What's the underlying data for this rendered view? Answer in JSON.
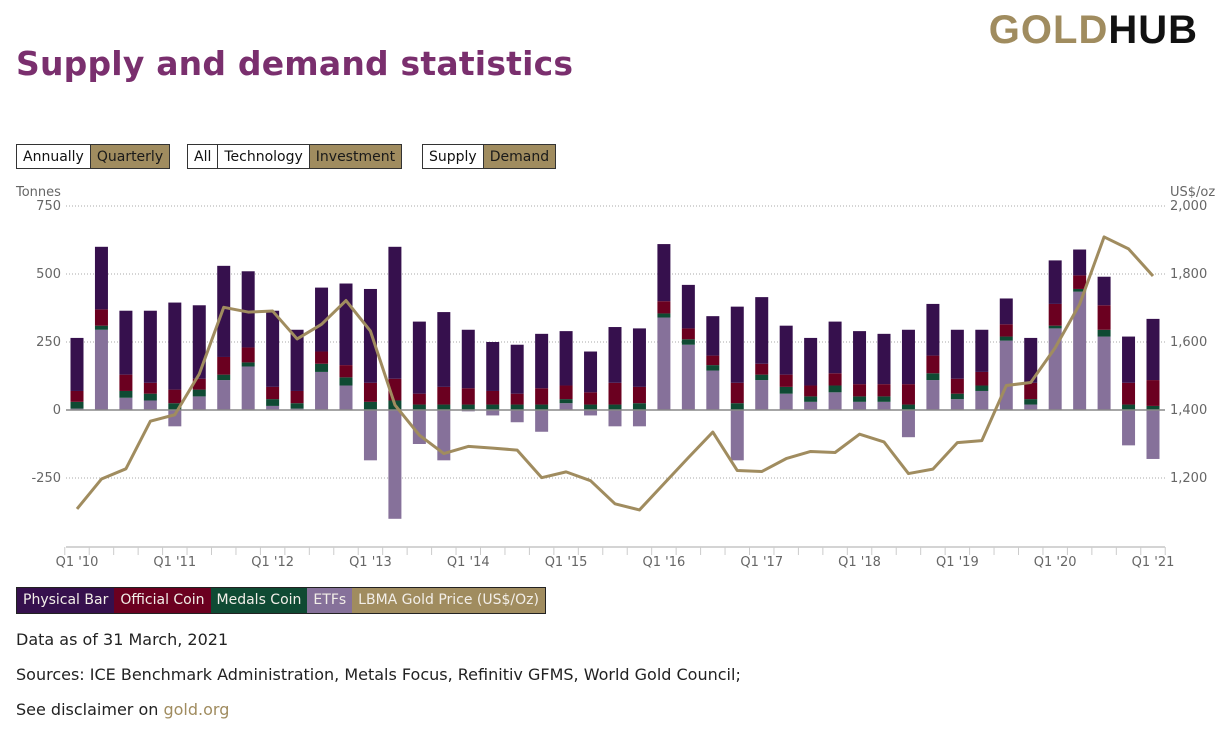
{
  "header": {
    "title": "Supply and demand statistics",
    "logo_gold": "GOLD",
    "logo_hub": "HUB"
  },
  "controls": {
    "period": [
      {
        "label": "Annually",
        "active": false
      },
      {
        "label": "Quarterly",
        "active": true
      }
    ],
    "category": [
      {
        "label": "All",
        "active": false
      },
      {
        "label": "Technology",
        "active": false
      },
      {
        "label": "Investment",
        "active": true
      }
    ],
    "side": [
      {
        "label": "Supply",
        "active": false
      },
      {
        "label": "Demand",
        "active": true
      }
    ]
  },
  "colors": {
    "physical_bar": "#36104d",
    "official_coin": "#6b0020",
    "medals_coin": "#0f4a33",
    "etfs": "#86719a",
    "price_line": "#a08c5f",
    "accent": "#a08c5f",
    "title": "#7a2f6e"
  },
  "chart_data": {
    "type": "bar",
    "stacked": true,
    "title": "",
    "ylabel": "Tonnes",
    "y2label": "US$/oz",
    "ylim": [
      -400,
      750
    ],
    "y2lim": [
      1000,
      2000
    ],
    "yticks": [
      -250,
      0,
      250,
      500,
      750
    ],
    "y2ticks": [
      1200,
      1400,
      1600,
      1800,
      2000
    ],
    "ytick_labels": [
      "-250",
      "0",
      "250",
      "500",
      "750"
    ],
    "y2tick_labels": [
      "1,200",
      "1,400",
      "1,600",
      "1,800",
      "2,000"
    ],
    "grid": true,
    "legend_position": "bottom-left",
    "xtick_labels": [
      "Q1 '10",
      "Q1 '11",
      "Q1 '12",
      "Q1 '13",
      "Q1 '14",
      "Q1 '15",
      "Q1 '16",
      "Q1 '17",
      "Q1 '18",
      "Q1 '19",
      "Q1 '20",
      "Q1 '21"
    ],
    "categories": [
      "Q1 '10",
      "Q2 '10",
      "Q3 '10",
      "Q4 '10",
      "Q1 '11",
      "Q2 '11",
      "Q3 '11",
      "Q4 '11",
      "Q1 '12",
      "Q2 '12",
      "Q3 '12",
      "Q4 '12",
      "Q1 '13",
      "Q2 '13",
      "Q3 '13",
      "Q4 '13",
      "Q1 '14",
      "Q2 '14",
      "Q3 '14",
      "Q4 '14",
      "Q1 '15",
      "Q2 '15",
      "Q3 '15",
      "Q4 '15",
      "Q1 '16",
      "Q2 '16",
      "Q3 '16",
      "Q4 '16",
      "Q1 '17",
      "Q2 '17",
      "Q3 '17",
      "Q4 '17",
      "Q1 '18",
      "Q2 '18",
      "Q3 '18",
      "Q4 '18",
      "Q1 '19",
      "Q2 '19",
      "Q3 '19",
      "Q4 '19",
      "Q1 '20",
      "Q2 '20",
      "Q3 '20",
      "Q4 '20",
      "Q1 '21"
    ],
    "series": [
      {
        "name": "ETFs",
        "color_key": "etfs",
        "values": [
          5,
          295,
          45,
          35,
          -60,
          50,
          110,
          160,
          15,
          5,
          140,
          90,
          -185,
          -400,
          -125,
          -185,
          -5,
          -20,
          -45,
          -80,
          25,
          -20,
          -60,
          -60,
          340,
          240,
          145,
          -185,
          110,
          60,
          30,
          65,
          30,
          30,
          -100,
          110,
          40,
          70,
          255,
          20,
          300,
          435,
          270,
          -130,
          -180
        ]
      },
      {
        "name": "Medals Coin",
        "color_key": "medals_coin",
        "values": [
          25,
          15,
          25,
          25,
          25,
          25,
          20,
          15,
          25,
          20,
          30,
          30,
          30,
          35,
          20,
          20,
          20,
          20,
          20,
          20,
          15,
          20,
          20,
          25,
          15,
          20,
          20,
          25,
          20,
          25,
          20,
          25,
          20,
          20,
          20,
          25,
          20,
          20,
          15,
          20,
          10,
          10,
          25,
          20,
          15
        ]
      },
      {
        "name": "Official Coin",
        "color_key": "official_coin",
        "values": [
          40,
          60,
          60,
          40,
          50,
          40,
          65,
          55,
          45,
          45,
          45,
          45,
          70,
          80,
          40,
          65,
          60,
          50,
          40,
          60,
          50,
          45,
          80,
          60,
          45,
          40,
          35,
          75,
          40,
          45,
          40,
          45,
          45,
          45,
          75,
          65,
          55,
          50,
          45,
          60,
          80,
          50,
          90,
          80,
          95
        ]
      },
      {
        "name": "Physical Bar",
        "color_key": "physical_bar",
        "values": [
          195,
          230,
          235,
          265,
          320,
          270,
          335,
          280,
          280,
          225,
          235,
          300,
          345,
          485,
          265,
          275,
          215,
          180,
          180,
          200,
          200,
          150,
          205,
          215,
          210,
          160,
          145,
          280,
          245,
          180,
          175,
          190,
          195,
          185,
          200,
          190,
          180,
          155,
          95,
          165,
          160,
          95,
          105,
          170,
          225
        ]
      }
    ],
    "line_series": {
      "name": "LBMA Gold Price (US$/Oz)",
      "axis": "right",
      "color_key": "price_line",
      "values": [
        1109,
        1197,
        1227,
        1367,
        1386,
        1506,
        1702,
        1688,
        1691,
        1609,
        1652,
        1722,
        1632,
        1415,
        1326,
        1272,
        1293,
        1288,
        1282,
        1201,
        1218,
        1192,
        1124,
        1106,
        1183,
        1260,
        1335,
        1222,
        1219,
        1257,
        1278,
        1275,
        1329,
        1306,
        1213,
        1226,
        1304,
        1310,
        1472,
        1481,
        1583,
        1711,
        1909,
        1874,
        1794
      ]
    }
  },
  "legend": [
    {
      "label": "Physical Bar",
      "color_key": "physical_bar"
    },
    {
      "label": "Official Coin",
      "color_key": "official_coin"
    },
    {
      "label": "Medals Coin",
      "color_key": "medals_coin"
    },
    {
      "label": "ETFs",
      "color_key": "etfs"
    },
    {
      "label": "LBMA Gold Price (US$/Oz)",
      "color_key": "price_line"
    }
  ],
  "footer": {
    "data_as_of": "Data as of 31 March, 2021",
    "sources": "Sources: ICE Benchmark Administration, Metals Focus, Refinitiv GFMS, World Gold Council;",
    "disclaimer_prefix": "See disclaimer on ",
    "disclaimer_link": "gold.org"
  }
}
